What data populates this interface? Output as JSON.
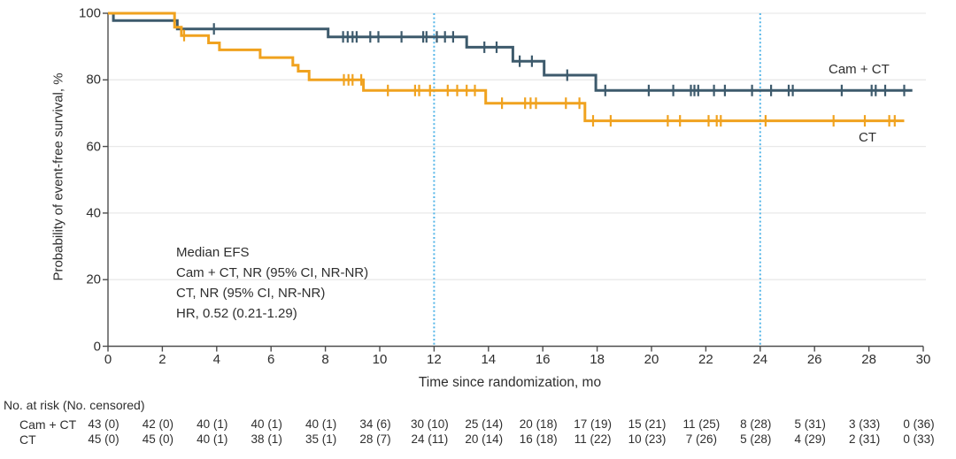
{
  "colors": {
    "cam_ct": "#3D5A6C",
    "ct": "#F0A21F",
    "reference_line": "#55B6E8",
    "grid": "#E9E9E9",
    "axis": "#4D4D4D",
    "text": "#2E2E2E",
    "background": "#FFFFFF"
  },
  "chart_data": {
    "type": "line",
    "subtype": "kaplan-meier-step",
    "title": "",
    "xlabel": "Time since randomization, mo",
    "ylabel": "Probability of event-free survival, %",
    "xlim": [
      0,
      30
    ],
    "ylim": [
      0,
      100
    ],
    "x_ticks": [
      0,
      2,
      4,
      6,
      8,
      10,
      12,
      14,
      16,
      18,
      20,
      22,
      24,
      26,
      28,
      30
    ],
    "y_ticks": [
      0,
      20,
      40,
      60,
      80,
      100
    ],
    "grid": "horizontal",
    "reference_lines_x": [
      12,
      24
    ],
    "series": [
      {
        "name": "Cam + CT",
        "color_key": "cam_ct",
        "steps": [
          [
            0,
            100
          ],
          [
            0.2,
            97.8
          ],
          [
            2.55,
            95.3
          ],
          [
            8.1,
            92.9
          ],
          [
            13.2,
            89.8
          ],
          [
            14.9,
            85.6
          ],
          [
            16.05,
            81.4
          ],
          [
            17.95,
            76.8
          ],
          [
            29.6,
            76.8
          ]
        ],
        "censor_times": [
          3.9,
          8.65,
          8.82,
          9.0,
          9.15,
          9.65,
          9.95,
          10.8,
          11.6,
          11.72,
          12.1,
          12.4,
          12.7,
          13.85,
          14.3,
          15.15,
          15.6,
          16.9,
          18.3,
          19.9,
          20.8,
          21.45,
          21.58,
          21.72,
          22.3,
          22.7,
          23.7,
          24.4,
          25.05,
          25.2,
          27.0,
          28.1,
          28.25,
          28.6,
          29.3
        ]
      },
      {
        "name": "CT",
        "color_key": "ct",
        "steps": [
          [
            0,
            100
          ],
          [
            2.45,
            95.8
          ],
          [
            2.7,
            93.3
          ],
          [
            3.7,
            91.1
          ],
          [
            4.1,
            89.0
          ],
          [
            5.6,
            86.7
          ],
          [
            6.8,
            84.4
          ],
          [
            7.0,
            82.6
          ],
          [
            7.4,
            80.0
          ],
          [
            9.4,
            76.8
          ],
          [
            13.9,
            73.0
          ],
          [
            17.55,
            67.7
          ],
          [
            29.3,
            67.7
          ]
        ],
        "censor_times": [
          2.8,
          8.68,
          8.85,
          9.0,
          9.32,
          10.3,
          11.3,
          11.45,
          11.85,
          12.5,
          12.85,
          13.2,
          13.5,
          14.5,
          15.35,
          15.55,
          15.75,
          16.85,
          17.35,
          17.85,
          18.5,
          20.6,
          21.05,
          22.1,
          22.4,
          22.55,
          24.2,
          26.7,
          27.85,
          28.75,
          28.95
        ]
      }
    ],
    "annotation": {
      "lines": [
        "Median EFS",
        "Cam + CT, NR (95% CI, NR-NR)",
        "CT, NR (95% CI, NR-NR)",
        "HR, 0.52 (0.21-1.29)"
      ]
    },
    "risk_table": {
      "header": "No. at risk (No. censored)",
      "times": [
        0,
        2,
        4,
        6,
        8,
        10,
        12,
        14,
        16,
        18,
        20,
        22,
        24,
        26,
        28,
        30
      ],
      "rows": [
        {
          "label": "Cam + CT",
          "values": [
            "43 (0)",
            "42 (0)",
            "40 (1)",
            "40 (1)",
            "40 (1)",
            "34 (6)",
            "30 (10)",
            "25 (14)",
            "20 (18)",
            "17 (19)",
            "15 (21)",
            "11 (25)",
            "8 (28)",
            "5 (31)",
            "3 (33)",
            "0 (36)"
          ]
        },
        {
          "label": "CT",
          "values": [
            "45 (0)",
            "45 (0)",
            "40 (1)",
            "38 (1)",
            "35 (1)",
            "28 (7)",
            "24 (11)",
            "20 (14)",
            "16 (18)",
            "11 (22)",
            "10 (23)",
            "7 (26)",
            "5 (28)",
            "4 (29)",
            "2 (31)",
            "0 (33)"
          ]
        }
      ]
    }
  }
}
